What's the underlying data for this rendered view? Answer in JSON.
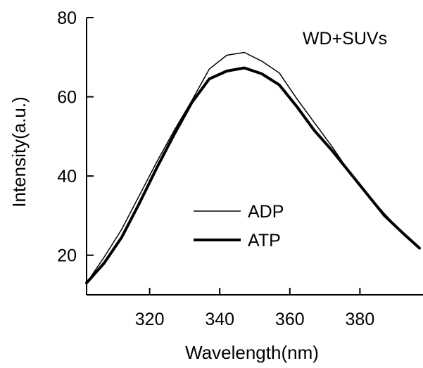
{
  "chart_data": {
    "type": "line",
    "title": "",
    "annotation": "WD+SUVs",
    "xlabel": "Wavelength(nm)",
    "ylabel": "Intensity(a.u.)",
    "xlim": [
      302,
      398
    ],
    "ylim": [
      10,
      80
    ],
    "xticks": [
      320,
      340,
      360,
      380
    ],
    "yticks": [
      20,
      40,
      60,
      80
    ],
    "grid": false,
    "legend_position": "center-bottom",
    "series": [
      {
        "name": "ADP",
        "style": "thin",
        "color": "#000000",
        "x": [
          302,
          307,
          312,
          317,
          322,
          327,
          332,
          337,
          342,
          347,
          352,
          357,
          362,
          367,
          372,
          377,
          382,
          387,
          392,
          397
        ],
        "y": [
          13,
          19.5,
          26.5,
          35,
          43.5,
          51.5,
          59,
          67,
          70.5,
          71.2,
          69,
          66,
          59.5,
          53.5,
          47.5,
          41,
          35.5,
          30.5,
          25.8,
          21.8
        ]
      },
      {
        "name": "ATP",
        "style": "thick",
        "color": "#000000",
        "x": [
          302,
          307,
          312,
          317,
          322,
          327,
          332,
          337,
          342,
          347,
          352,
          357,
          362,
          367,
          372,
          377,
          382,
          387,
          392,
          397
        ],
        "y": [
          13,
          18,
          24.5,
          33,
          42,
          50.5,
          58.5,
          64.5,
          66.5,
          67.3,
          65.8,
          63,
          57.5,
          51.5,
          46.5,
          41,
          35.5,
          30,
          25.8,
          21.8
        ]
      }
    ]
  }
}
